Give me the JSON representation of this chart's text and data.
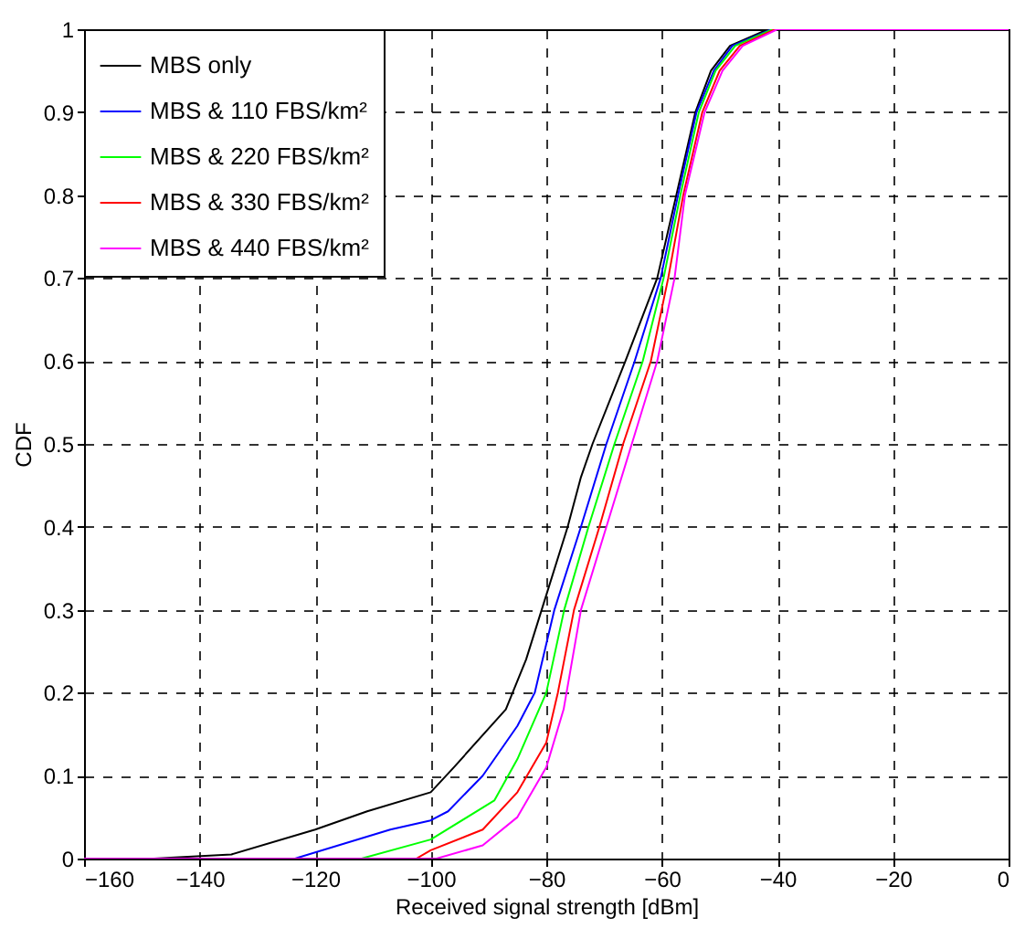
{
  "chart_data": {
    "type": "line",
    "xlabel": "Received signal strength [dBm]",
    "ylabel": "CDF",
    "xlim": [
      -160,
      0
    ],
    "ylim": [
      0,
      1
    ],
    "xticks": [
      -160,
      -140,
      -120,
      -100,
      -80,
      -60,
      -40,
      -20,
      0
    ],
    "yticks": [
      0,
      0.1,
      0.2,
      0.3,
      0.4,
      0.5,
      0.6,
      0.7,
      0.8,
      0.9,
      1
    ],
    "grid": true,
    "legend": "top left",
    "line_style": "solid",
    "series": [
      {
        "name": "MBS only",
        "color": "#000000",
        "x": [
          -160,
          -148,
          -134.5,
          -120,
          -111,
          -100,
          -96,
          -87,
          -83.5,
          -80.8,
          -76.3,
          -74,
          -72,
          -66.3,
          -60.8,
          -57.5,
          -54.2,
          -51.5,
          -48.2,
          -41.6
        ],
        "values": [
          0,
          0,
          0.005,
          0.035,
          0.057,
          0.08,
          0.11,
          0.18,
          0.24,
          0.3,
          0.4,
          0.46,
          0.5,
          0.6,
          0.7,
          0.8,
          0.9,
          0.95,
          0.98,
          1
        ]
      },
      {
        "name": "MBS & 110 FBS/km²",
        "color": "#0000ff",
        "x": [
          -160,
          -123.5,
          -107,
          -100,
          -97,
          -91,
          -85,
          -82,
          -78.6,
          -74,
          -69.6,
          -64.7,
          -60.2,
          -57.2,
          -54,
          -51,
          -47.8,
          -41
        ],
        "values": [
          0,
          0,
          0.035,
          0.046,
          0.057,
          0.1,
          0.16,
          0.2,
          0.3,
          0.4,
          0.5,
          0.6,
          0.7,
          0.8,
          0.9,
          0.95,
          0.98,
          1
        ]
      },
      {
        "name": "MBS & 220 FBS/km²",
        "color": "#00ff00",
        "x": [
          -160,
          -112,
          -100,
          -89,
          -85,
          -80,
          -76.9,
          -72.7,
          -68.2,
          -63.3,
          -59.7,
          -56.8,
          -53.6,
          -50.7,
          -47.3,
          -40.8
        ],
        "values": [
          0,
          0,
          0.023,
          0.07,
          0.12,
          0.2,
          0.3,
          0.4,
          0.5,
          0.6,
          0.7,
          0.8,
          0.9,
          0.95,
          0.98,
          1
        ]
      },
      {
        "name": "MBS & 330 FBS/km²",
        "color": "#ff0000",
        "x": [
          -160,
          -102.5,
          -100,
          -91,
          -85,
          -80,
          -78,
          -75.2,
          -70.8,
          -66.7,
          -61.9,
          -58.9,
          -56.3,
          -53,
          -50,
          -46.5,
          -40.4
        ],
        "values": [
          0,
          0,
          0.01,
          0.035,
          0.08,
          0.14,
          0.2,
          0.3,
          0.4,
          0.5,
          0.6,
          0.7,
          0.8,
          0.9,
          0.95,
          0.98,
          1
        ]
      },
      {
        "name": "MBS & 440 FBS/km²",
        "color": "#ff00ff",
        "x": [
          -160,
          -99,
          -91,
          -85,
          -80,
          -77,
          -74,
          -69.6,
          -65.2,
          -60.8,
          -57.8,
          -56,
          -52.6,
          -49.5,
          -46,
          -40,
          0
        ],
        "values": [
          0,
          0,
          0.016,
          0.05,
          0.11,
          0.18,
          0.3,
          0.4,
          0.5,
          0.6,
          0.7,
          0.8,
          0.9,
          0.95,
          0.98,
          1,
          1
        ]
      }
    ]
  }
}
